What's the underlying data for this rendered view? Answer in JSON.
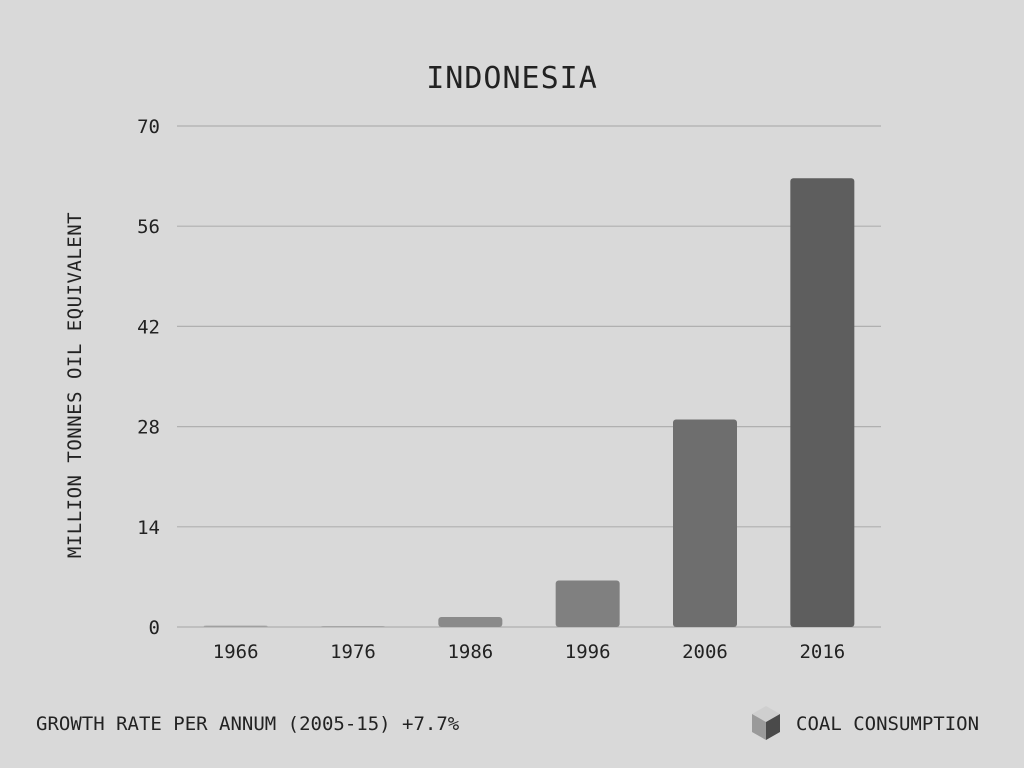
{
  "chart_data": {
    "type": "bar",
    "title": "INDONESIA",
    "ylabel": "MILLION TONNES OIL EQUIVALENT",
    "xlabel": "",
    "categories": [
      "1966",
      "1976",
      "1986",
      "1996",
      "2006",
      "2016"
    ],
    "values": [
      0.2,
      0.1,
      1.4,
      6.5,
      29.0,
      62.7
    ],
    "ylim": [
      0,
      70
    ],
    "yticks": [
      "0",
      "14",
      "28",
      "42",
      "56",
      "70"
    ],
    "grid": true,
    "bar_colors": [
      "#a0a0a0",
      "#999999",
      "#8a8a8a",
      "#808080",
      "#6e6e6e",
      "#5e5e5e"
    ]
  },
  "footer": {
    "growth_label": "GROWTH RATE PER ANNUM (2005-15) +7.7%",
    "legend_label": "COAL CONSUMPTION",
    "legend_icon": "cube-icon"
  },
  "colors": {
    "background": "#d9d9d9",
    "gridline": "#b0b0b0",
    "text": "#222222"
  }
}
